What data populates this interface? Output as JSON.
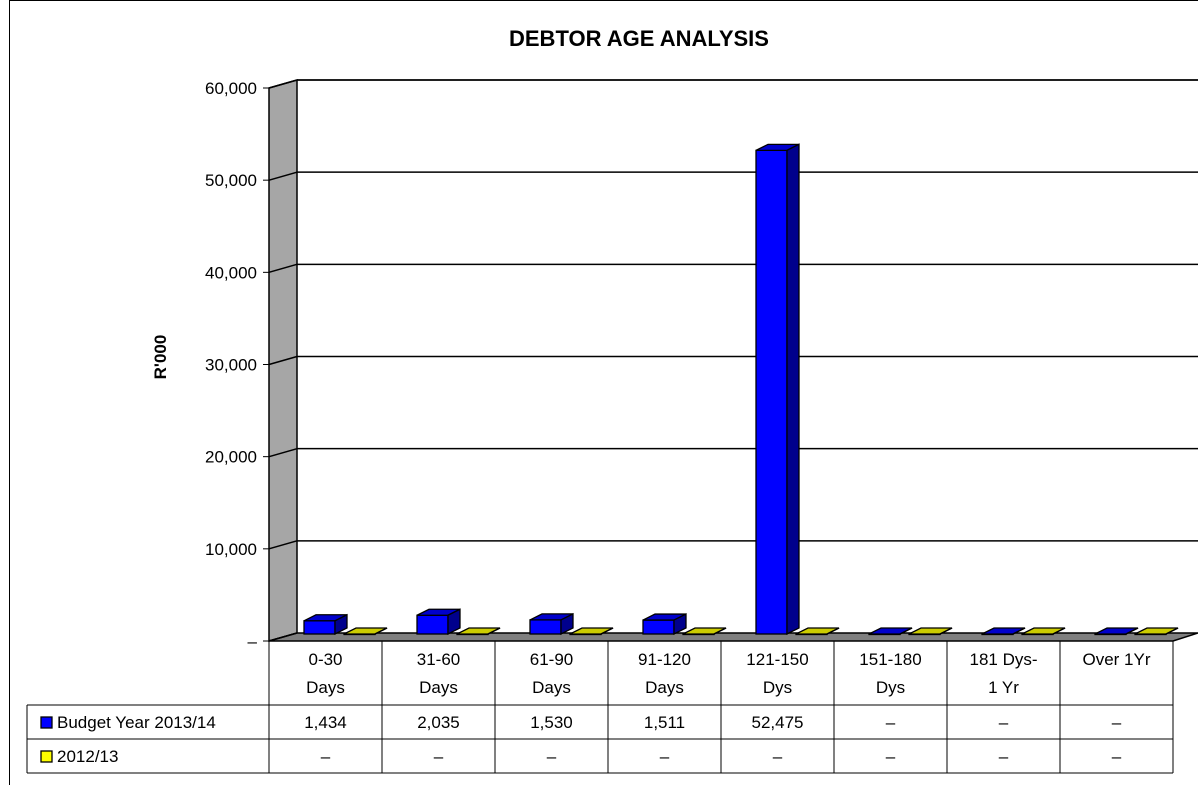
{
  "chart_data": {
    "type": "bar",
    "title": "DEBTOR AGE ANALYSIS",
    "ylabel": "R'000",
    "xlabel": "",
    "ylim": [
      0,
      60000
    ],
    "yticks": [
      0,
      10000,
      20000,
      30000,
      40000,
      50000,
      60000
    ],
    "ytick_labels": [
      "–",
      "10,000",
      "20,000",
      "30,000",
      "40,000",
      "50,000",
      "60,000"
    ],
    "grid": true,
    "legend_placement": "data-table-left",
    "categories": [
      [
        "0-30",
        "Days"
      ],
      [
        "31-60",
        "Days"
      ],
      [
        "61-90",
        "Days"
      ],
      [
        "91-120",
        "Days"
      ],
      [
        "121-150",
        "Dys"
      ],
      [
        "151-180",
        "Dys"
      ],
      [
        "181 Dys-",
        "1 Yr"
      ],
      [
        "Over 1Yr",
        ""
      ]
    ],
    "series": [
      {
        "name": "Budget Year 2013/14",
        "color": "#0000ff",
        "values": [
          1434,
          2035,
          1530,
          1511,
          52475,
          0,
          0,
          0
        ],
        "labels": [
          "1,434",
          "2,035",
          "1,530",
          "1,511",
          "52,475",
          "–",
          "–",
          "–"
        ]
      },
      {
        "name": "2012/13",
        "color": "#ffff00",
        "values": [
          0,
          0,
          0,
          0,
          0,
          0,
          0,
          0
        ],
        "labels": [
          "–",
          "–",
          "–",
          "–",
          "–",
          "–",
          "–",
          "–"
        ]
      }
    ]
  }
}
